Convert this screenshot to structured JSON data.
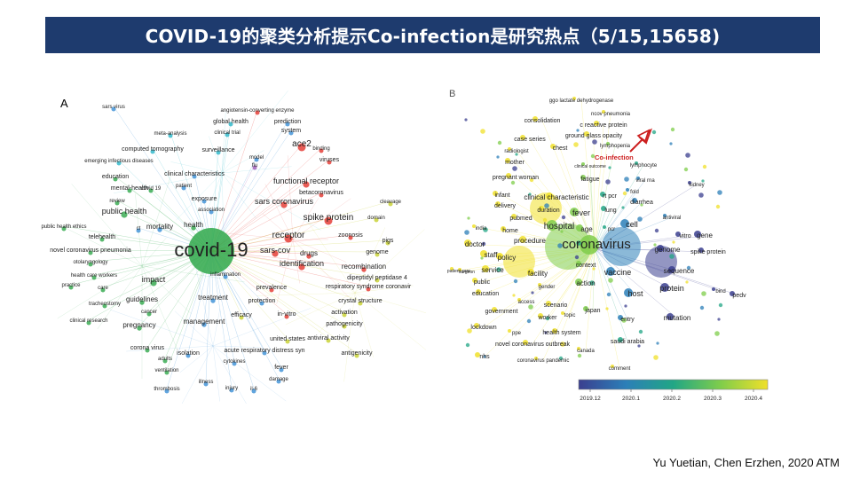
{
  "header": {
    "title": "COVID-19的聚类分析提示Co-infection是研究热点（5/15,15658)",
    "bg_color": "#1e3b6e"
  },
  "panel_a": {
    "letter": "A",
    "cluster_colors": {
      "green": "#2fa84a",
      "red": "#e4332c",
      "yellow": "#c6cf2a",
      "blue": "#3a8fd6",
      "purple": "#9b59b6",
      "cyan": "#28b7c9"
    },
    "labels": [
      "covid-19",
      "sars-cov",
      "receptor",
      "identification",
      "drugs",
      "recombination",
      "spike protein",
      "sars coronavirus",
      "functional receptor",
      "ace2",
      "betacoronavirus",
      "public health",
      "health",
      "mortality",
      "impact",
      "guidelines",
      "treatment",
      "management",
      "pregnancy",
      "corona virus",
      "isolation",
      "adults",
      "ventilation",
      "thrombosis",
      "illness",
      "injury",
      "il-6",
      "cytokines",
      "acute respiratory distress syn",
      "fever",
      "damage",
      "united states",
      "antiviral activity",
      "antigenicity",
      "pathogenicity",
      "activation",
      "crystal structure",
      "respiratory syndrome coronavir",
      "dipeptidyl peptidase 4",
      "genome",
      "pigs",
      "domain",
      "zoonosis",
      "cleavage",
      "viruses",
      "binding",
      "prediction",
      "system",
      "model",
      "sars virus",
      "angiotensin-converting enzyme",
      "global health",
      "meta-analysis",
      "clinical trial",
      "computed tomography",
      "surveillance",
      "emerging infectious diseases",
      "clinical characteristics",
      "education",
      "mental-health",
      "covid 19",
      "patient",
      "review",
      "exposure",
      "association",
      "public health ethics",
      "ct",
      "telehealth",
      "novel coronavirus pneumonia",
      "otolaryngology",
      "health care workers",
      "care",
      "practice",
      "tracheostomy",
      "cancer",
      "clinical research",
      "inflammation",
      "protection",
      "prevalence",
      "efficacy",
      "in-vitro",
      "flu"
    ]
  },
  "panel_b": {
    "letter": "B",
    "annotation": "Co-infection",
    "annotation_color": "#cc1f1f",
    "labels": [
      "ggo lactate dehydrogenase",
      "ncov pneumonia",
      "consolidation",
      "c reactive protein",
      "case series",
      "ground glass opacity",
      "radiologist",
      "chest",
      "lymphopenia",
      "mother",
      "clinical outcome",
      "lymphocyte",
      "pregnant woman",
      "fatigue",
      "viral rna",
      "kidney",
      "infant",
      "clinical characteristic",
      "rt pcr",
      "fold",
      "delivery",
      "duration",
      "fever",
      "lung",
      "diarrhea",
      "india",
      "pubmed",
      "hospital",
      "cell",
      "antiviral",
      "home",
      "age",
      "pcr",
      "vitro",
      "gene",
      "doctor",
      "procedure",
      "coronavirus",
      "genome",
      "spike protein",
      "surgeon",
      "staff",
      "policy",
      "service",
      "context",
      "sequence",
      "patient care",
      "facility",
      "vaccine",
      "pedv",
      "protein",
      "gender",
      "action",
      "host",
      "education",
      "public",
      "bind",
      "access",
      "scenario",
      "government",
      "worker",
      "topic",
      "japan",
      "entry",
      "mutation",
      "lockdown",
      "ppe",
      "health system",
      "saudi arabia",
      "novel coronavirus outbreak",
      "canada",
      "nhs",
      "coronavirus pandemic",
      "comment"
    ],
    "colorbar": {
      "ticks": [
        "2019.12",
        "2020.1",
        "2020.2",
        "2020.3",
        "2020.4"
      ],
      "colors": [
        "#3b3f8f",
        "#2c7fb8",
        "#21a685",
        "#7fcd4b",
        "#f0e02a"
      ]
    }
  },
  "citation": "Yu Yuetian, Chen Erzhen, 2020 ATM"
}
